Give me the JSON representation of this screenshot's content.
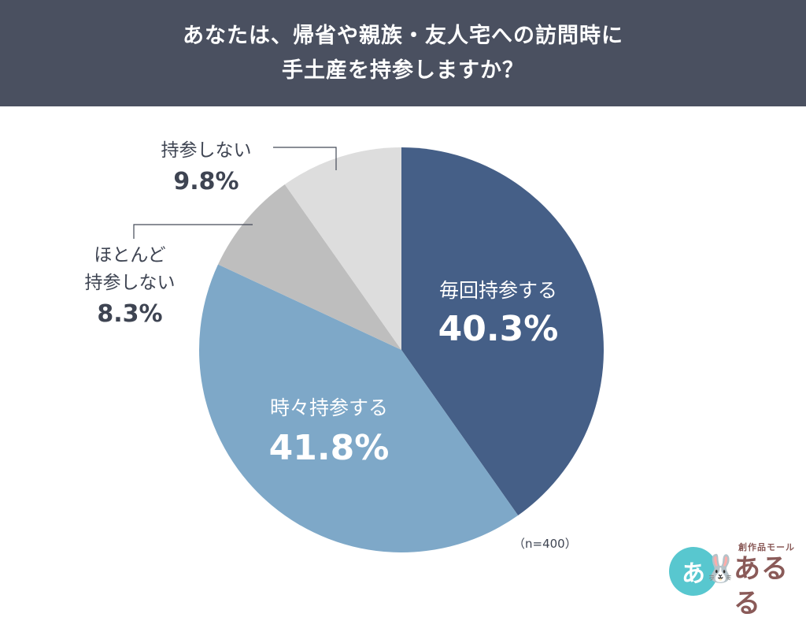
{
  "header": {
    "line1": "あなたは、帰省や親族・友人宅への訪問時に",
    "line2": "手土産を持参しますか？"
  },
  "chart_data": {
    "type": "pie",
    "title": "あなたは、帰省や親族・友人宅への訪問時に手土産を持参しますか？",
    "slices": [
      {
        "label": "毎回持参する",
        "value": 40.3,
        "value_label": "40.3%",
        "color": "#455f87"
      },
      {
        "label": "時々持参する",
        "value": 41.8,
        "value_label": "41.8%",
        "color": "#7ea8c8"
      },
      {
        "label": "ほとんど持参しない",
        "value": 8.3,
        "value_label": "8.3%",
        "color": "#bebebe"
      },
      {
        "label": "持参しない",
        "value": 9.8,
        "value_label": "9.8%",
        "color": "#dddddd"
      }
    ],
    "note": "（n=400）"
  },
  "logo": {
    "circle_text": "あ",
    "small_text": "創作品モール",
    "big_text": "あるる"
  }
}
